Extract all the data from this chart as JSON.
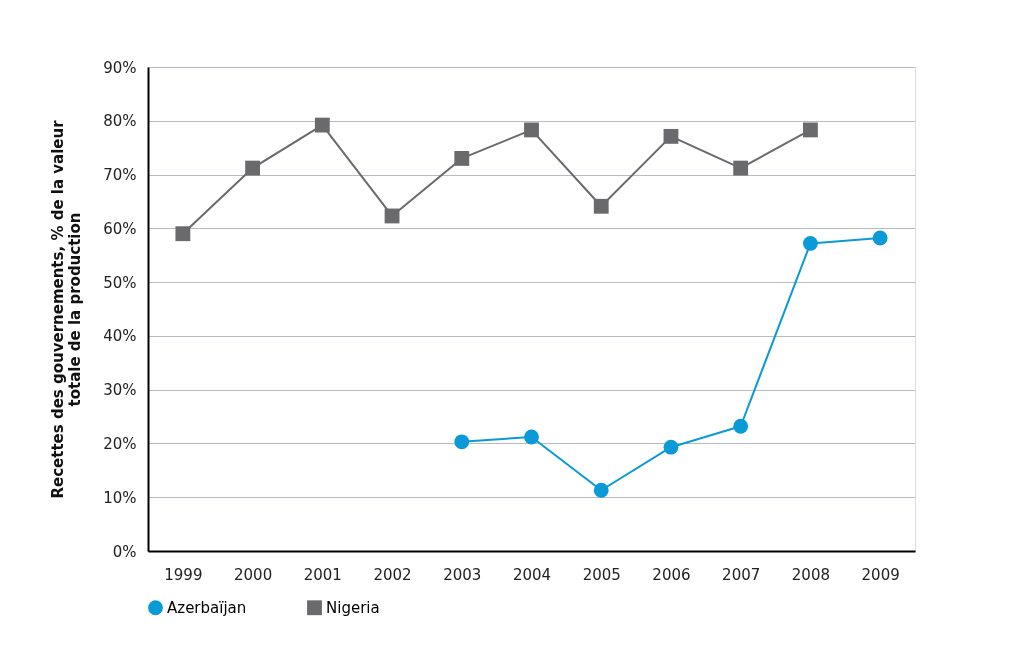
{
  "chart_data": {
    "type": "line",
    "ylabel": "Recettes des gouvernements, % de la valeur\ntotale de la production",
    "categories": [
      "1999",
      "2000",
      "2001",
      "2002",
      "2003",
      "2004",
      "2005",
      "2006",
      "2007",
      "2008",
      "2009"
    ],
    "series": [
      {
        "name": "Azerbaïjan",
        "color": "#0a9ad7",
        "marker": "circle",
        "values": [
          null,
          null,
          null,
          null,
          20.3,
          21.2,
          11.3,
          19.3,
          23.2,
          57.2,
          58.2
        ]
      },
      {
        "name": "Nigeria",
        "color": "#6a6a6c",
        "marker": "square",
        "values": [
          59,
          71.2,
          79.2,
          62.3,
          73,
          78.3,
          64.1,
          77.1,
          71.2,
          78.3,
          null
        ]
      }
    ],
    "ylim": [
      0,
      90
    ],
    "yticks": [
      {
        "value": 0,
        "label": "0%"
      },
      {
        "value": 10,
        "label": "10%"
      },
      {
        "value": 20,
        "label": "20%"
      },
      {
        "value": 30,
        "label": "30%"
      },
      {
        "value": 40,
        "label": "40%"
      },
      {
        "value": 50,
        "label": "50%"
      },
      {
        "value": 60,
        "label": "60%"
      },
      {
        "value": 70,
        "label": "70%"
      },
      {
        "value": 80,
        "label": "80%"
      },
      {
        "value": 90,
        "label": "90%"
      }
    ],
    "grid": "y",
    "legend": "bottom",
    "line_style": "solid"
  }
}
